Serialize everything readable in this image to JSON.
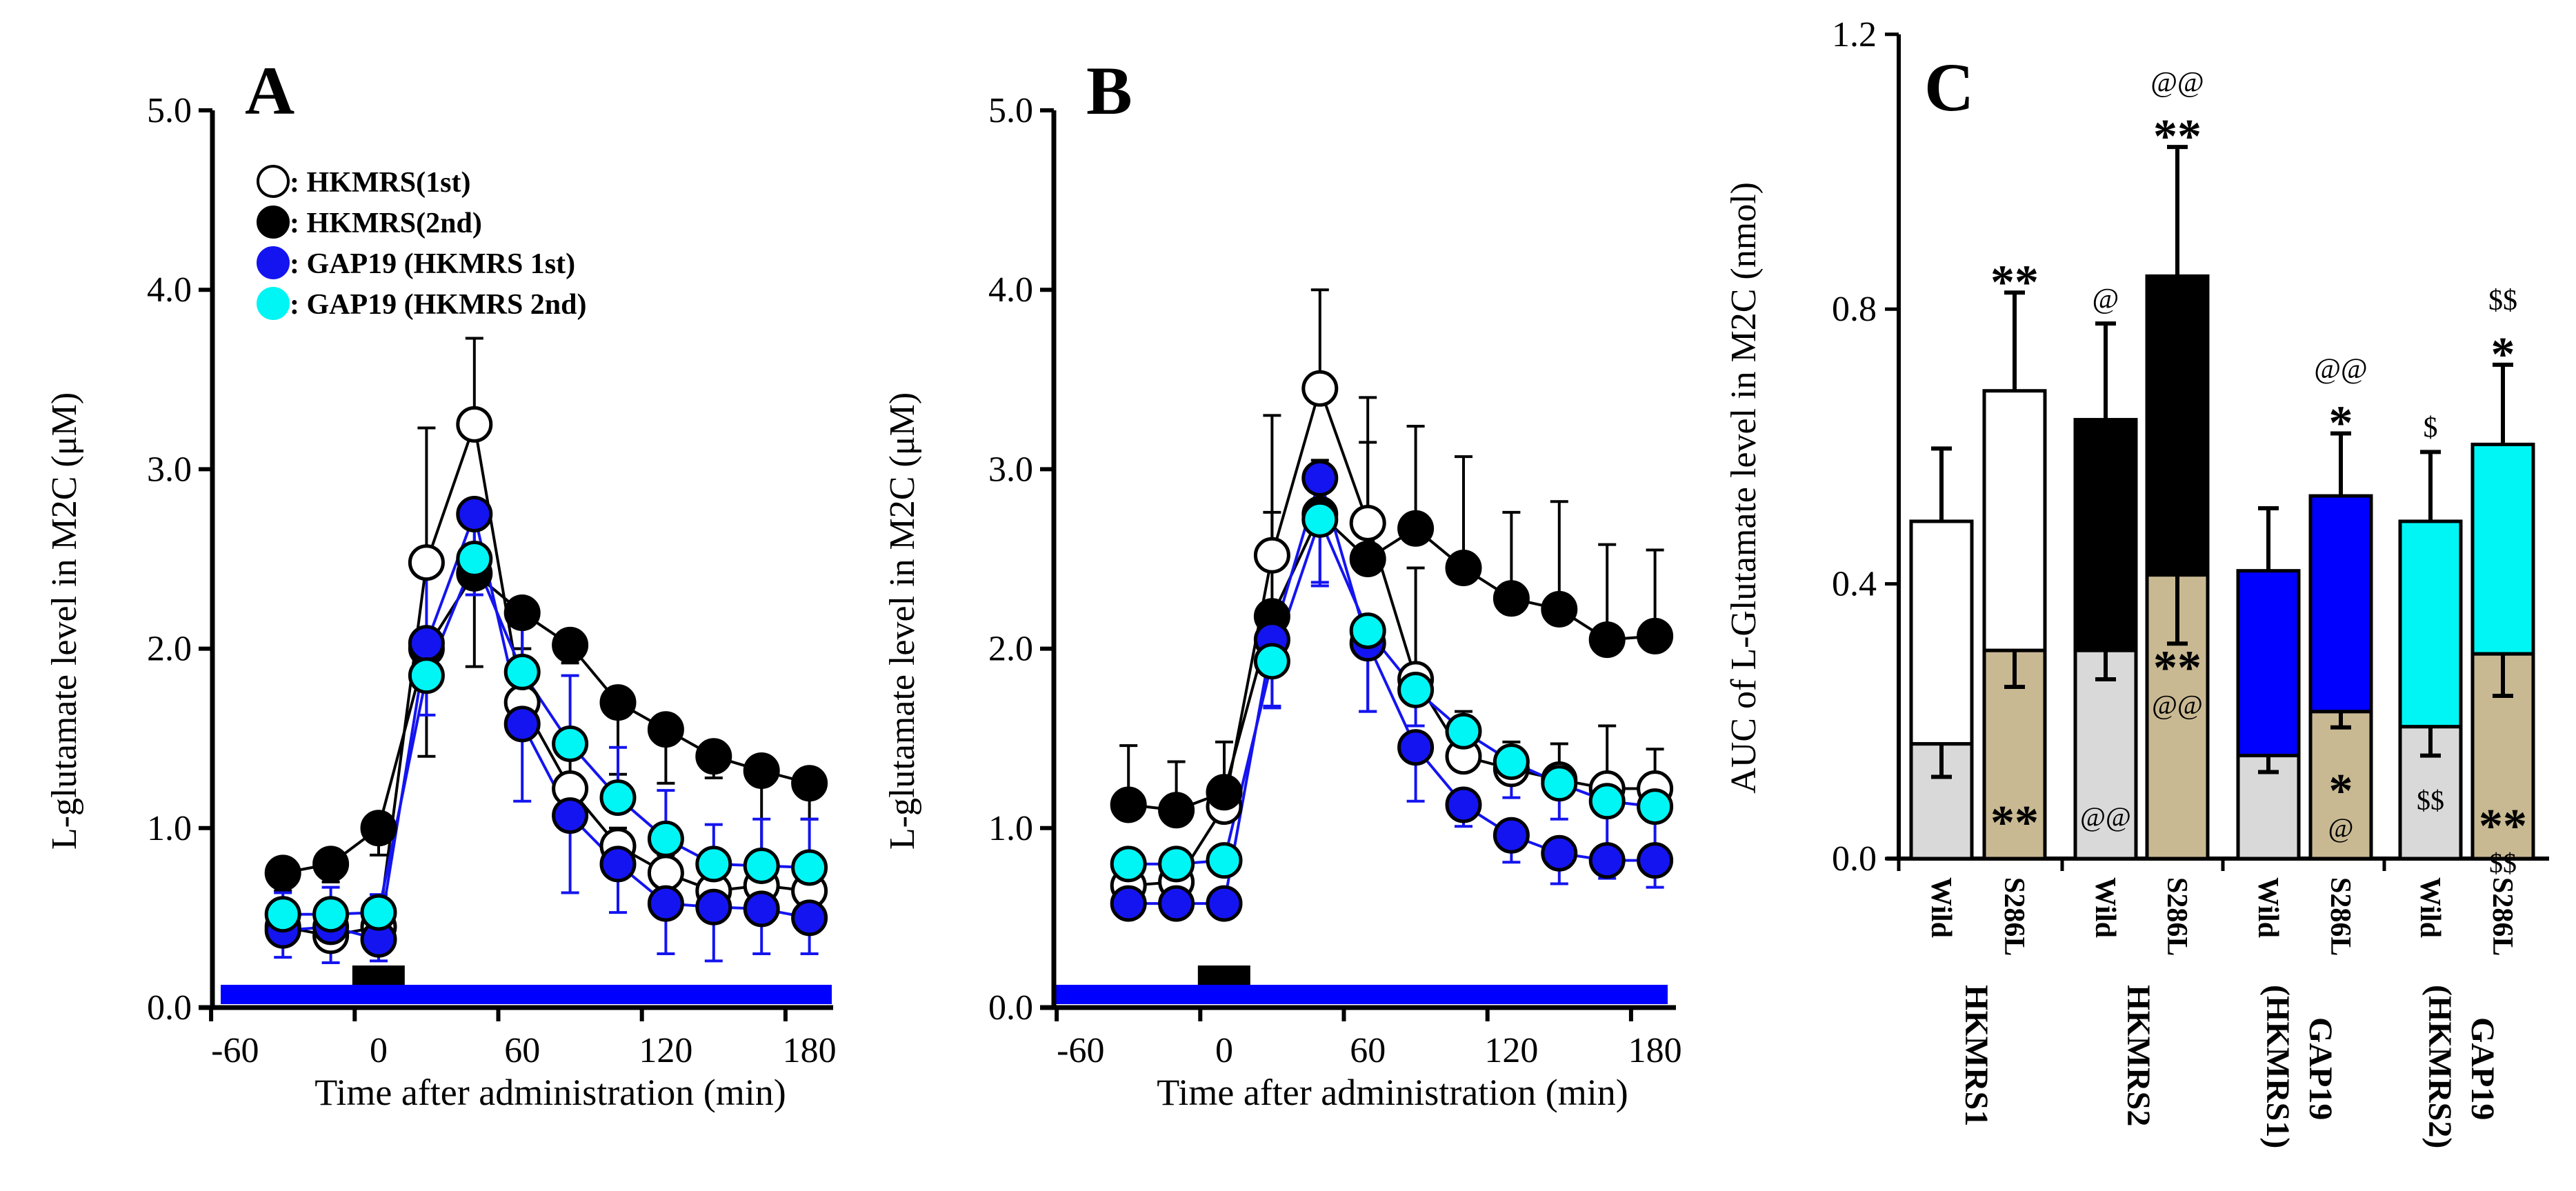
{
  "colors": {
    "blue": "#1414f0",
    "cyan": "#00f5f5",
    "black": "#000000",
    "white": "#ffffff",
    "wild_lower": "#d9d9d9",
    "s286l_lower": "#c9b993",
    "bar_blue": "#0000ff"
  },
  "chart_data": [
    {
      "panel": "A",
      "type": "line",
      "ylabel": "L-glutamate level in M2C (μM)",
      "xlabel": "Time after administration (min)",
      "ylim": [
        0,
        5
      ],
      "yticks": [
        "0.0",
        "1.0",
        "2.0",
        "3.0",
        "4.0",
        "5.0"
      ],
      "xticks": [
        -60,
        0,
        60,
        120,
        180
      ],
      "xlim": [
        -70,
        190
      ],
      "x": [
        -40,
        -20,
        0,
        20,
        40,
        60,
        80,
        100,
        120,
        140,
        160,
        180
      ],
      "legend": {
        "placement": "top-left"
      },
      "series": [
        {
          "name": ": HKMRS(1st)",
          "fill": "white",
          "line": "black",
          "error_dir": "up",
          "values": [
            0.45,
            0.4,
            0.45,
            2.48,
            3.25,
            1.7,
            1.22,
            0.9,
            0.75,
            0.65,
            0.68,
            0.65
          ],
          "errors": [
            0.05,
            0.05,
            0.05,
            0.75,
            0.48,
            0.3,
            0.2,
            0.1,
            0.1,
            0.08,
            0.1,
            0.1
          ]
        },
        {
          "name": ": HKMRS(2nd)",
          "fill": "black",
          "line": "black",
          "error_dir": "down",
          "values": [
            0.75,
            0.8,
            1.0,
            2.0,
            2.42,
            2.2,
            2.02,
            1.7,
            1.55,
            1.4,
            1.32,
            1.25
          ],
          "errors": [
            0.1,
            0.1,
            0.15,
            0.6,
            0.52,
            0.2,
            0.1,
            0.4,
            0.3,
            0.12,
            0.45,
            0.2
          ]
        },
        {
          "name": ": GAP19 (HKMRS 1st)",
          "fill": "blue",
          "line": "blue",
          "error_dir": "down",
          "values": [
            0.43,
            0.45,
            0.38,
            2.03,
            2.75,
            1.58,
            1.07,
            0.8,
            0.58,
            0.56,
            0.55,
            0.5
          ],
          "errors": [
            0.15,
            0.2,
            0.12,
            0.4,
            0.45,
            0.43,
            0.43,
            0.27,
            0.28,
            0.3,
            0.25,
            0.2
          ]
        },
        {
          "name": ": GAP19 (HKMRS 2nd)",
          "fill": "cyan",
          "line": "blue",
          "error_dir": "up",
          "values": [
            0.52,
            0.52,
            0.53,
            1.85,
            2.5,
            1.87,
            1.47,
            1.17,
            0.94,
            0.8,
            0.79,
            0.78
          ],
          "errors": [
            0.12,
            0.15,
            0.1,
            0.55,
            0.3,
            0.4,
            0.38,
            0.28,
            0.27,
            0.22,
            0.26,
            0.27
          ]
        }
      ]
    },
    {
      "panel": "B",
      "type": "line",
      "ylabel": "L-glutamate level in M2C (μM)",
      "xlabel": "Time after administration (min)",
      "ylim": [
        0,
        5
      ],
      "yticks": [
        "0.0",
        "1.0",
        "2.0",
        "3.0",
        "4.0",
        "5.0"
      ],
      "xticks": [
        -60,
        0,
        60,
        120,
        180
      ],
      "xlim": [
        -70,
        190
      ],
      "x": [
        -40,
        -20,
        0,
        20,
        40,
        60,
        80,
        100,
        120,
        140,
        160,
        180
      ],
      "series": [
        {
          "name": "HKMRS(1st)",
          "fill": "white",
          "line": "black",
          "error_dir": "up",
          "values": [
            0.68,
            0.7,
            1.12,
            2.52,
            3.45,
            2.7,
            1.83,
            1.4,
            1.33,
            1.27,
            1.22,
            1.22
          ],
          "errors": [
            0.1,
            0.1,
            0.15,
            0.78,
            0.55,
            0.7,
            0.62,
            0.25,
            0.15,
            0.2,
            0.35,
            0.22
          ]
        },
        {
          "name": "HKMRS(2nd)",
          "fill": "black",
          "line": "black",
          "error_dir": "up",
          "values": [
            1.13,
            1.1,
            1.2,
            2.18,
            2.75,
            2.5,
            2.67,
            2.45,
            2.28,
            2.22,
            2.05,
            2.07
          ],
          "errors": [
            0.33,
            0.27,
            0.28,
            0.58,
            0.3,
            0.65,
            0.57,
            0.62,
            0.48,
            0.6,
            0.53,
            0.48
          ]
        },
        {
          "name": "GAP19 (HKMRS 1st)",
          "fill": "blue",
          "line": "blue",
          "error_dir": "down",
          "values": [
            0.58,
            0.58,
            0.58,
            2.05,
            2.95,
            2.03,
            1.45,
            1.13,
            0.96,
            0.86,
            0.82,
            0.82
          ],
          "errors": [
            0.08,
            0.05,
            0.05,
            0.38,
            0.6,
            0.38,
            0.3,
            0.12,
            0.15,
            0.17,
            0.1,
            0.15
          ]
        },
        {
          "name": "GAP19 (HKMRS 2nd)",
          "fill": "cyan",
          "line": "blue",
          "error_dir": "down",
          "values": [
            0.8,
            0.8,
            0.82,
            1.93,
            2.72,
            2.1,
            1.77,
            1.54,
            1.37,
            1.25,
            1.15,
            1.12
          ],
          "errors": [
            0.05,
            0.05,
            0.05,
            0.25,
            0.35,
            0.45,
            0.2,
            0.1,
            0.2,
            0.2,
            0.3,
            0.3
          ]
        }
      ]
    },
    {
      "panel": "C",
      "type": "bar",
      "stacked": true,
      "ylabel": "AUC of L-Glutamate level in M2C (nmol)",
      "ylim": [
        0,
        1.2
      ],
      "yticks": [
        "0.0",
        "0.4",
        "0.8",
        "1.2"
      ],
      "groups": [
        {
          "label": [
            "HKMRS1"
          ]
        },
        {
          "label": [
            "HKMRS2"
          ]
        },
        {
          "label": [
            "GAP19",
            "(HKMRS1)"
          ]
        },
        {
          "label": [
            "GAP19",
            "(HKMRS2)"
          ]
        }
      ],
      "bars": [
        {
          "category": "Wild",
          "group": 0,
          "total": 0.491,
          "total_err": 0.106,
          "lower": 0.167,
          "lower_err": 0.048,
          "upper_fill": "white",
          "lower_fill": "wild_lower",
          "above": [],
          "inside": []
        },
        {
          "category": "S286L",
          "group": 0,
          "total": 0.681,
          "total_err": 0.143,
          "lower": 0.303,
          "lower_err": 0.053,
          "upper_fill": "white",
          "lower_fill": "s286l_lower",
          "above": [
            "**"
          ],
          "inside": [
            "**"
          ]
        },
        {
          "category": "Wild",
          "group": 1,
          "total": 0.639,
          "total_err": 0.14,
          "lower": 0.303,
          "lower_err": 0.042,
          "upper_fill": "black",
          "lower_fill": "wild_lower",
          "above": [
            "@"
          ],
          "inside": [
            "@@"
          ]
        },
        {
          "category": "S286L",
          "group": 1,
          "total": 0.848,
          "total_err": 0.188,
          "lower": 0.413,
          "lower_err": 0.1,
          "upper_fill": "black",
          "lower_fill": "s286l_lower",
          "above": [
            "**",
            "@@"
          ],
          "inside": [
            "**",
            "@@"
          ]
        },
        {
          "category": "Wild",
          "group": 2,
          "total": 0.419,
          "total_err": 0.091,
          "lower": 0.15,
          "lower_err": 0.024,
          "upper_fill": "bar_blue",
          "lower_fill": "wild_lower",
          "above": [],
          "inside": []
        },
        {
          "category": "S286L",
          "group": 2,
          "total": 0.528,
          "total_err": 0.091,
          "lower": 0.214,
          "lower_err": 0.023,
          "upper_fill": "bar_blue",
          "lower_fill": "s286l_lower",
          "above": [
            "*",
            "@@"
          ],
          "inside": [
            "*",
            "@"
          ]
        },
        {
          "category": "Wild",
          "group": 3,
          "total": 0.491,
          "total_err": 0.101,
          "lower": 0.192,
          "lower_err": 0.042,
          "upper_fill": "cyan",
          "lower_fill": "wild_lower",
          "above": [
            "$"
          ],
          "inside": [
            "$$"
          ]
        },
        {
          "category": "S286L",
          "group": 3,
          "total": 0.603,
          "total_err": 0.116,
          "lower": 0.298,
          "lower_err": 0.061,
          "upper_fill": "cyan",
          "lower_fill": "s286l_lower",
          "above": [
            "*",
            "$$"
          ],
          "inside": [
            "**",
            "$$"
          ]
        }
      ]
    }
  ]
}
